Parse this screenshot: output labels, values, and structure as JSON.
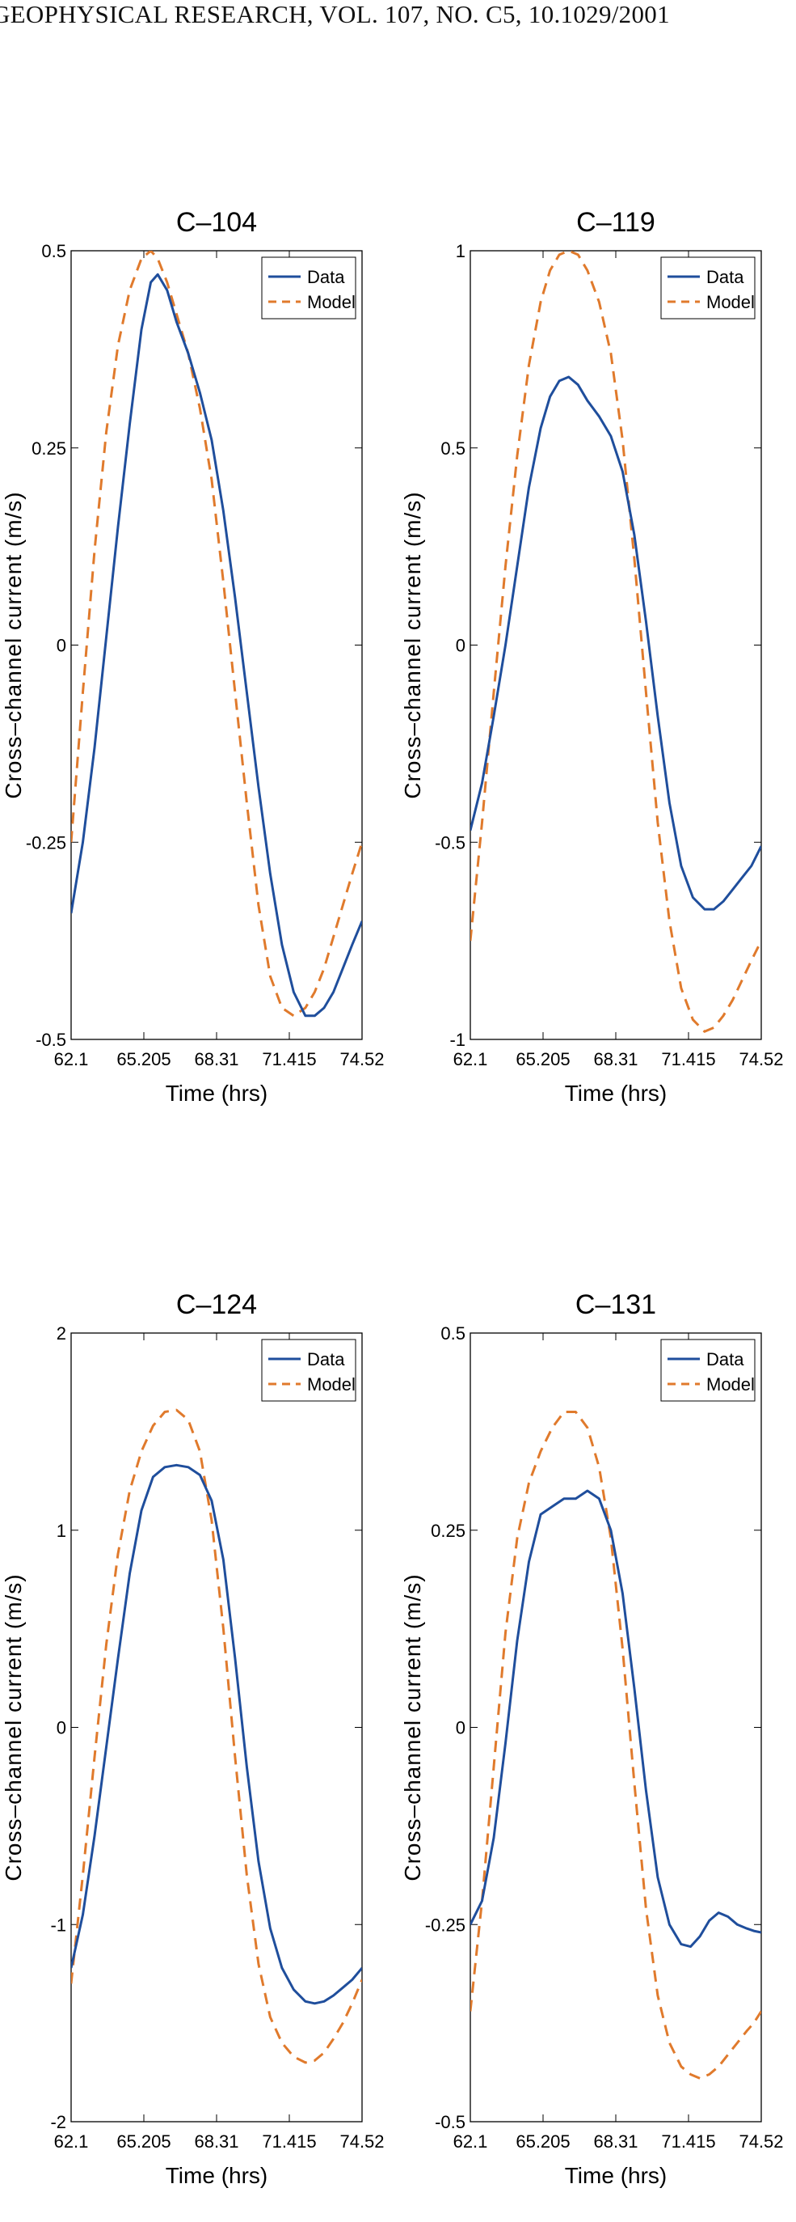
{
  "header": {
    "running_head": "GEOPHYSICAL RESEARCH, VOL. 107, NO. C5, 10.1029/2001"
  },
  "colors": {
    "data": "#1f4e9c",
    "model": "#e07a2c",
    "axes": "#000000"
  },
  "chart_data": [
    {
      "type": "line",
      "title": "C–104",
      "xlabel": "Time (hrs)",
      "ylabel": "Cross–channel current (m/s)",
      "xlim": [
        62.1,
        74.52
      ],
      "ylim": [
        -0.5,
        0.5
      ],
      "xticks": [
        62.1,
        65.205,
        68.31,
        71.415,
        74.52
      ],
      "xtick_labels": [
        "62.1",
        "65.205",
        "68.31",
        "71.415",
        "74.52"
      ],
      "yticks": [
        -0.5,
        -0.25,
        0,
        0.25,
        0.5
      ],
      "ytick_labels": [
        "-0.5",
        "-0.25",
        "0",
        "0.25",
        "0.5"
      ],
      "legend": {
        "position": "top-right",
        "entries": [
          "Data",
          "Model"
        ]
      },
      "series": [
        {
          "name": "Data",
          "style": "solid",
          "x": [
            62.1,
            62.6,
            63.1,
            63.6,
            64.1,
            64.6,
            65.1,
            65.5,
            65.8,
            66.2,
            66.6,
            67.1,
            67.6,
            68.1,
            68.6,
            69.1,
            69.6,
            70.1,
            70.6,
            71.1,
            71.6,
            72.1,
            72.5,
            72.9,
            73.3,
            73.7,
            74.1,
            74.52
          ],
          "y": [
            -0.34,
            -0.25,
            -0.13,
            0.01,
            0.15,
            0.28,
            0.4,
            0.46,
            0.47,
            0.45,
            0.41,
            0.37,
            0.32,
            0.26,
            0.17,
            0.06,
            -0.06,
            -0.18,
            -0.29,
            -0.38,
            -0.44,
            -0.47,
            -0.47,
            -0.46,
            -0.44,
            -0.41,
            -0.38,
            -0.35
          ]
        },
        {
          "name": "Model",
          "style": "dashed",
          "x": [
            62.1,
            62.6,
            63.1,
            63.6,
            64.1,
            64.6,
            65.1,
            65.5,
            65.8,
            66.2,
            66.6,
            67.1,
            67.6,
            68.1,
            68.6,
            69.1,
            69.6,
            70.1,
            70.6,
            71.1,
            71.6,
            72.1,
            72.5,
            72.9,
            73.3,
            73.7,
            74.1,
            74.52
          ],
          "y": [
            -0.25,
            -0.06,
            0.12,
            0.27,
            0.38,
            0.45,
            0.49,
            0.5,
            0.49,
            0.46,
            0.42,
            0.37,
            0.3,
            0.21,
            0.08,
            -0.06,
            -0.2,
            -0.33,
            -0.42,
            -0.46,
            -0.47,
            -0.46,
            -0.44,
            -0.41,
            -0.37,
            -0.33,
            -0.29,
            -0.25
          ]
        }
      ]
    },
    {
      "type": "line",
      "title": "C–119",
      "xlabel": "Time (hrs)",
      "ylabel": "Cross–channel current (m/s)",
      "xlim": [
        62.1,
        74.52
      ],
      "ylim": [
        -1,
        1
      ],
      "xticks": [
        62.1,
        65.205,
        68.31,
        71.415,
        74.52
      ],
      "xtick_labels": [
        "62.1",
        "65.205",
        "68.31",
        "71.415",
        "74.52"
      ],
      "yticks": [
        -1,
        -0.5,
        0,
        0.5,
        1
      ],
      "ytick_labels": [
        "-1",
        "-0.5",
        "0",
        "0.5",
        "1"
      ],
      "legend": {
        "position": "top-right",
        "entries": [
          "Data",
          "Model"
        ]
      },
      "series": [
        {
          "name": "Data",
          "style": "solid",
          "x": [
            62.1,
            62.6,
            63.1,
            63.6,
            64.1,
            64.6,
            65.1,
            65.5,
            65.9,
            66.3,
            66.7,
            67.1,
            67.6,
            68.1,
            68.6,
            69.1,
            69.6,
            70.1,
            70.6,
            71.1,
            71.6,
            72.1,
            72.5,
            72.9,
            73.3,
            73.7,
            74.1,
            74.52
          ],
          "y": [
            -0.47,
            -0.35,
            -0.18,
            0.0,
            0.2,
            0.4,
            0.55,
            0.63,
            0.67,
            0.68,
            0.66,
            0.62,
            0.58,
            0.53,
            0.44,
            0.28,
            0.06,
            -0.18,
            -0.4,
            -0.56,
            -0.64,
            -0.67,
            -0.67,
            -0.65,
            -0.62,
            -0.59,
            -0.56,
            -0.51
          ]
        },
        {
          "name": "Model",
          "style": "dashed",
          "x": [
            62.1,
            62.6,
            63.1,
            63.6,
            64.1,
            64.6,
            65.1,
            65.5,
            65.9,
            66.3,
            66.7,
            67.1,
            67.6,
            68.1,
            68.6,
            69.1,
            69.6,
            70.1,
            70.6,
            71.1,
            71.6,
            72.1,
            72.5,
            72.9,
            73.3,
            73.7,
            74.1,
            74.52
          ],
          "y": [
            -0.75,
            -0.45,
            -0.12,
            0.2,
            0.48,
            0.71,
            0.87,
            0.95,
            0.99,
            1.0,
            0.99,
            0.95,
            0.87,
            0.74,
            0.52,
            0.22,
            -0.12,
            -0.45,
            -0.7,
            -0.87,
            -0.95,
            -0.98,
            -0.97,
            -0.94,
            -0.9,
            -0.85,
            -0.8,
            -0.75
          ]
        }
      ]
    },
    {
      "type": "line",
      "title": "C–124",
      "xlabel": "Time (hrs)",
      "ylabel": "Cross–channel current (m/s)",
      "xlim": [
        62.1,
        74.52
      ],
      "ylim": [
        -2,
        2
      ],
      "xticks": [
        62.1,
        65.205,
        68.31,
        71.415,
        74.52
      ],
      "xtick_labels": [
        "62.1",
        "65.205",
        "68.31",
        "71.415",
        "74.52"
      ],
      "yticks": [
        -2,
        -1,
        0,
        1,
        2
      ],
      "ytick_labels": [
        "-2",
        "-1",
        "0",
        "1",
        "2"
      ],
      "legend": {
        "position": "top-right",
        "entries": [
          "Data",
          "Model"
        ]
      },
      "series": [
        {
          "name": "Data",
          "style": "solid",
          "x": [
            62.1,
            62.6,
            63.1,
            63.6,
            64.1,
            64.6,
            65.1,
            65.6,
            66.1,
            66.6,
            67.1,
            67.6,
            68.1,
            68.6,
            69.1,
            69.6,
            70.1,
            70.6,
            71.1,
            71.6,
            72.1,
            72.5,
            72.9,
            73.3,
            73.7,
            74.1,
            74.52
          ],
          "y": [
            -1.22,
            -0.95,
            -0.55,
            -0.1,
            0.35,
            0.78,
            1.1,
            1.27,
            1.32,
            1.33,
            1.32,
            1.28,
            1.15,
            0.85,
            0.35,
            -0.2,
            -0.68,
            -1.02,
            -1.22,
            -1.33,
            -1.39,
            -1.4,
            -1.39,
            -1.36,
            -1.32,
            -1.28,
            -1.22
          ]
        },
        {
          "name": "Model",
          "style": "dashed",
          "x": [
            62.1,
            62.6,
            63.1,
            63.6,
            64.1,
            64.6,
            65.1,
            65.6,
            66.1,
            66.6,
            67.1,
            67.6,
            68.1,
            68.6,
            69.1,
            69.6,
            70.1,
            70.6,
            71.1,
            71.6,
            72.1,
            72.5,
            72.9,
            73.3,
            73.7,
            74.1,
            74.52
          ],
          "y": [
            -1.3,
            -0.75,
            -0.15,
            0.42,
            0.88,
            1.2,
            1.4,
            1.53,
            1.6,
            1.61,
            1.56,
            1.4,
            1.05,
            0.5,
            -0.15,
            -0.75,
            -1.2,
            -1.47,
            -1.6,
            -1.67,
            -1.7,
            -1.69,
            -1.65,
            -1.58,
            -1.5,
            -1.4,
            -1.28
          ]
        }
      ]
    },
    {
      "type": "line",
      "title": "C–131",
      "xlabel": "Time (hrs)",
      "ylabel": "Cross–channel current (m/s)",
      "xlim": [
        62.1,
        74.52
      ],
      "ylim": [
        -0.5,
        0.5
      ],
      "xticks": [
        62.1,
        65.205,
        68.31,
        71.415,
        74.52
      ],
      "xtick_labels": [
        "62.1",
        "65.205",
        "68.31",
        "71.415",
        "74.52"
      ],
      "yticks": [
        -0.5,
        -0.25,
        0,
        0.25,
        0.5
      ],
      "ytick_labels": [
        "-0.5",
        "-0.25",
        "0",
        "0.25",
        "0.5"
      ],
      "legend": {
        "position": "top-right",
        "entries": [
          "Data",
          "Model"
        ]
      },
      "series": [
        {
          "name": "Data",
          "style": "solid",
          "x": [
            62.1,
            62.6,
            63.1,
            63.6,
            64.1,
            64.6,
            65.1,
            65.6,
            66.1,
            66.6,
            67.1,
            67.6,
            68.1,
            68.6,
            69.1,
            69.6,
            70.1,
            70.6,
            71.1,
            71.5,
            71.9,
            72.3,
            72.7,
            73.1,
            73.5,
            73.9,
            74.2,
            74.52
          ],
          "y": [
            -0.25,
            -0.22,
            -0.14,
            -0.02,
            0.11,
            0.21,
            0.27,
            0.28,
            0.29,
            0.29,
            0.3,
            0.29,
            0.25,
            0.17,
            0.05,
            -0.08,
            -0.19,
            -0.25,
            -0.275,
            -0.278,
            -0.265,
            -0.245,
            -0.235,
            -0.24,
            -0.25,
            -0.255,
            -0.258,
            -0.26
          ]
        },
        {
          "name": "Model",
          "style": "dashed",
          "x": [
            62.1,
            62.6,
            63.1,
            63.6,
            64.1,
            64.6,
            65.1,
            65.6,
            66.1,
            66.6,
            67.1,
            67.6,
            68.1,
            68.6,
            69.1,
            69.6,
            70.1,
            70.6,
            71.1,
            71.5,
            71.9,
            72.3,
            72.7,
            73.1,
            73.5,
            73.9,
            74.2,
            74.52
          ],
          "y": [
            -0.36,
            -0.22,
            -0.05,
            0.12,
            0.24,
            0.31,
            0.35,
            0.38,
            0.4,
            0.4,
            0.38,
            0.33,
            0.24,
            0.1,
            -0.07,
            -0.23,
            -0.34,
            -0.4,
            -0.43,
            -0.44,
            -0.445,
            -0.44,
            -0.43,
            -0.415,
            -0.4,
            -0.385,
            -0.375,
            -0.36
          ]
        }
      ]
    }
  ]
}
